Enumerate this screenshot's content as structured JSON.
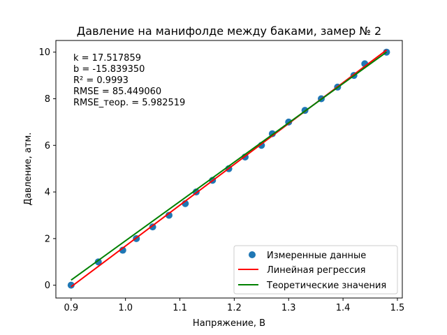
{
  "chart_data": {
    "type": "scatter",
    "title": "Давление на манифолде между баками, замер № 2",
    "xlabel": "Напряжение, В",
    "ylabel": "Давление, атм.",
    "xlim": [
      0.872,
      1.509
    ],
    "ylim": [
      -0.55,
      10.5
    ],
    "xticks": [
      0.9,
      1.0,
      1.1,
      1.2,
      1.3,
      1.4,
      1.5
    ],
    "xtick_labels": [
      "0.9",
      "1.0",
      "1.1",
      "1.2",
      "1.3",
      "1.4",
      "1.5"
    ],
    "yticks": [
      0,
      2,
      4,
      6,
      8,
      10
    ],
    "ytick_labels": [
      "0",
      "2",
      "4",
      "6",
      "8",
      "10"
    ],
    "grid": false,
    "legend_position": "bottom-right",
    "stats_lines": [
      "k = 17.517859",
      "b = -15.839350",
      "R² = 0.9993",
      "RMSE = 85.449060",
      "RMSE_теор. = 5.982519"
    ],
    "series": [
      {
        "name": "Измеренные данные",
        "kind": "scatter",
        "color": "#1f77b4",
        "x": [
          0.9,
          0.95,
          0.995,
          1.02,
          1.05,
          1.08,
          1.11,
          1.13,
          1.16,
          1.19,
          1.22,
          1.25,
          1.27,
          1.3,
          1.33,
          1.36,
          1.39,
          1.42,
          1.44,
          1.48
        ],
        "y": [
          0.0,
          1.0,
          1.5,
          2.0,
          2.5,
          3.0,
          3.5,
          4.0,
          4.5,
          5.0,
          5.5,
          6.0,
          6.5,
          7.0,
          7.5,
          8.0,
          8.5,
          9.0,
          9.5,
          10.0
        ]
      },
      {
        "name": "Линейная регрессия",
        "kind": "line",
        "color": "#ff0000",
        "x": [
          0.9,
          1.48
        ],
        "y": [
          -0.07,
          10.09
        ]
      },
      {
        "name": "Теоретические значения",
        "kind": "line",
        "color": "#008000",
        "x": [
          0.9,
          1.48
        ],
        "y": [
          0.22,
          10.0
        ]
      }
    ]
  }
}
